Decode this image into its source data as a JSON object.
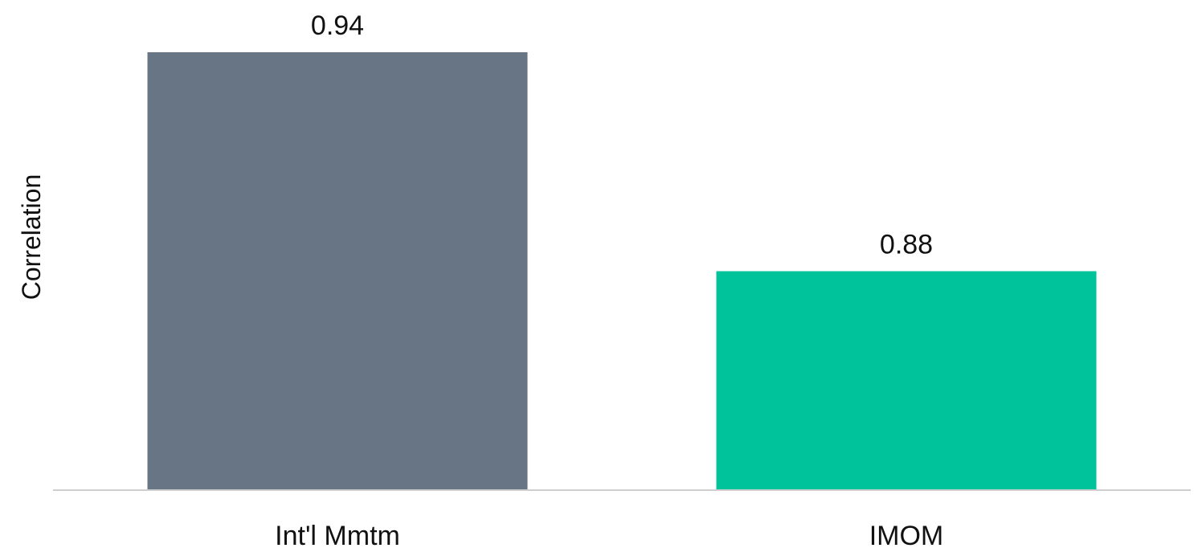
{
  "chart_data": {
    "type": "bar",
    "title": "",
    "xlabel": "",
    "ylabel": "Correlation",
    "categories": [
      "Int'l Mmtm",
      "IMOM"
    ],
    "values": [
      0.94,
      0.88
    ],
    "value_labels": [
      "0.94",
      "0.88"
    ],
    "colors": [
      "#687585",
      "#00c29b"
    ],
    "ylim": [
      0.82,
      0.94
    ],
    "grid": false,
    "legend": "none"
  }
}
